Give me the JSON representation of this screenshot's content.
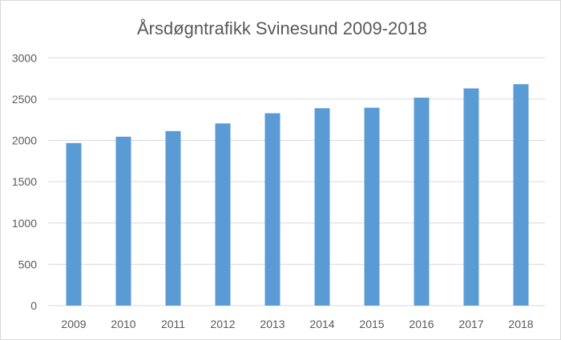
{
  "chart_data": {
    "type": "bar",
    "title": "Årsdøgntrafikk Svinesund 2009-2018",
    "xlabel": "",
    "ylabel": "",
    "categories": [
      "2009",
      "2010",
      "2011",
      "2012",
      "2013",
      "2014",
      "2015",
      "2016",
      "2017",
      "2018"
    ],
    "values": [
      1968,
      2045,
      2113,
      2206,
      2329,
      2390,
      2396,
      2518,
      2630,
      2681
    ],
    "ylim": [
      0,
      3000
    ],
    "yticks": [
      0,
      500,
      1000,
      1500,
      2000,
      2500,
      3000
    ],
    "grid": true,
    "legend": "none",
    "colors": {
      "bar": "#5b9bd5",
      "grid": "#d9d9d9",
      "text": "#595959"
    }
  }
}
